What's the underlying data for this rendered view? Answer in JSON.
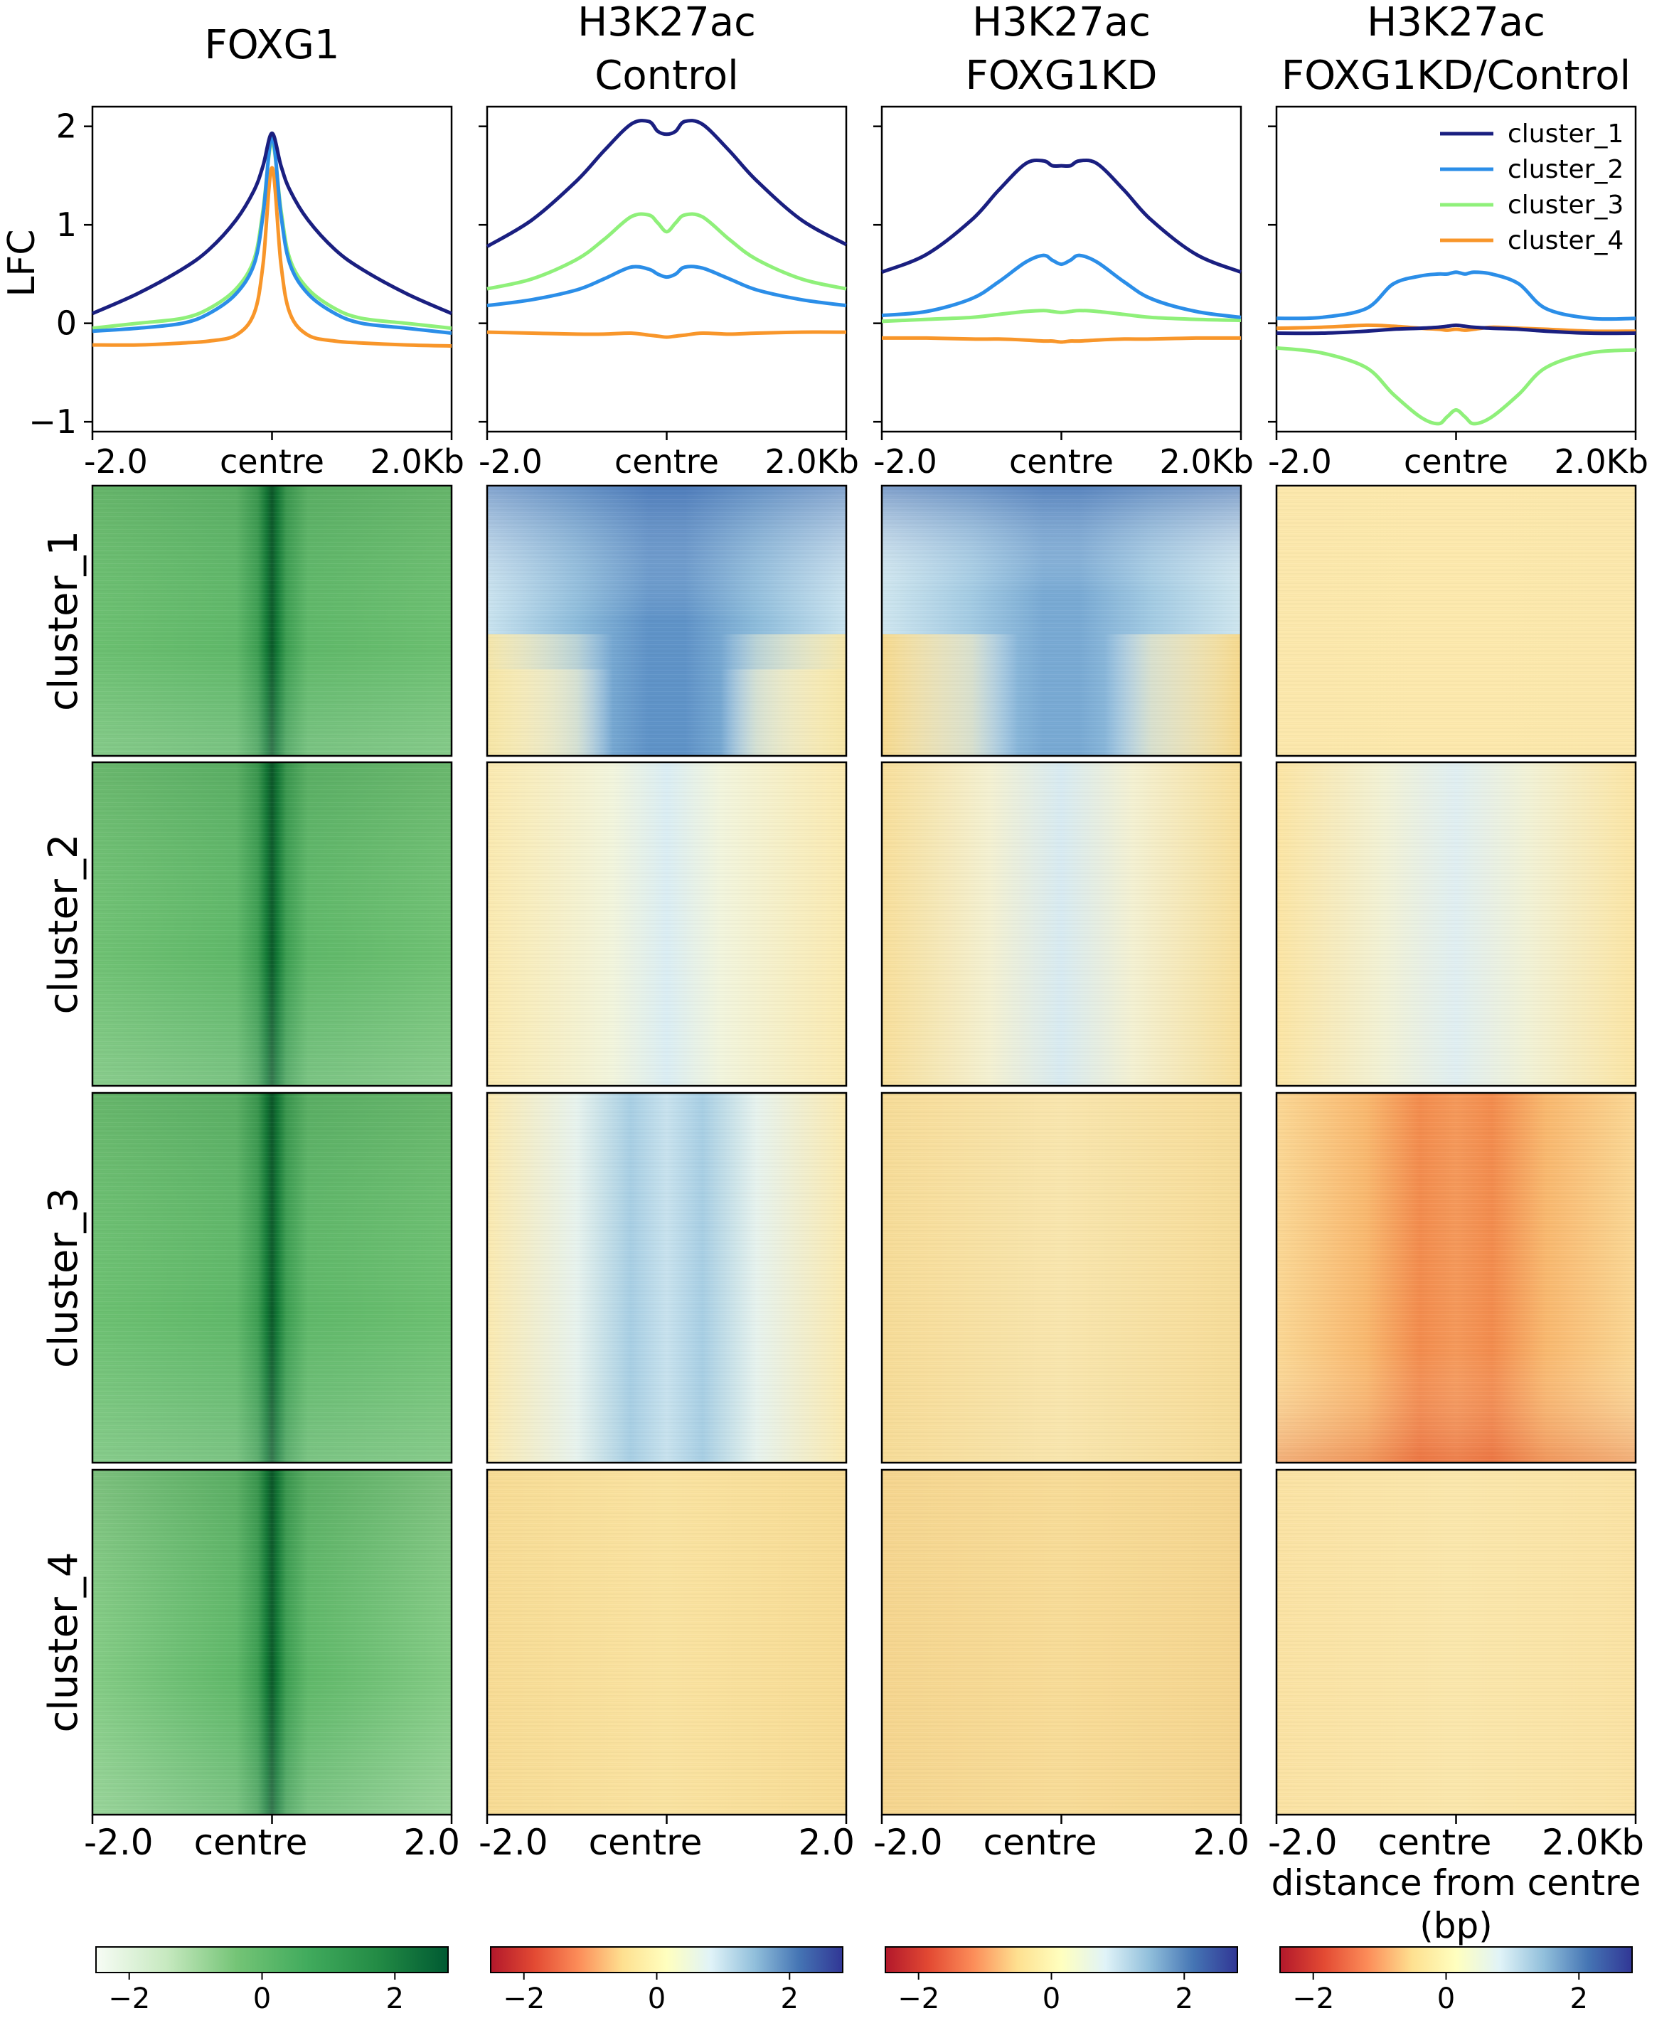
{
  "chart_data": {
    "type": "heatmap",
    "columns": [
      {
        "title_lines": [
          "FOXG1"
        ],
        "colormap": "Greens"
      },
      {
        "title_lines": [
          "H3K27ac",
          "Control"
        ],
        "colormap": "RdYlBu"
      },
      {
        "title_lines": [
          "H3K27ac",
          "FOXG1KD"
        ],
        "colormap": "RdYlBu"
      },
      {
        "title_lines": [
          "H3K27ac",
          "FOXG1KD/Control"
        ],
        "colormap": "RdYlBu"
      }
    ],
    "profile": {
      "ylabel": "LFC",
      "ylim": [
        -1.1,
        2.2
      ],
      "yticks": [
        -1,
        0,
        1,
        2
      ],
      "ytick_labels": [
        "−1",
        "0",
        "1",
        "2"
      ],
      "xtick_labels": [
        "-2.0",
        "centre",
        "2.0Kb"
      ],
      "x_range": [
        -2000,
        2000
      ],
      "legend_position": "top-right",
      "series": [
        {
          "name": "cluster_1",
          "color": "#1a1f80"
        },
        {
          "name": "cluster_2",
          "color": "#2b8ee8"
        },
        {
          "name": "cluster_3",
          "color": "#8ff07a"
        },
        {
          "name": "cluster_4",
          "color": "#f8962a"
        }
      ],
      "x": [
        -2000,
        -1500,
        -1000,
        -700,
        -400,
        -200,
        -100,
        0,
        100,
        200,
        400,
        700,
        1000,
        1500,
        2000
      ],
      "panels": [
        [
          [
            0.1,
            0.3,
            0.55,
            0.75,
            1.05,
            1.35,
            1.6,
            1.93,
            1.6,
            1.35,
            1.05,
            0.75,
            0.55,
            0.3,
            0.1
          ],
          [
            -0.08,
            -0.05,
            0.0,
            0.1,
            0.3,
            0.6,
            1.1,
            1.9,
            1.1,
            0.6,
            0.3,
            0.1,
            0.0,
            -0.05,
            -0.1
          ],
          [
            -0.05,
            0.0,
            0.05,
            0.15,
            0.35,
            0.65,
            1.15,
            1.85,
            1.15,
            0.65,
            0.35,
            0.15,
            0.05,
            0.0,
            -0.05
          ],
          [
            -0.22,
            -0.22,
            -0.2,
            -0.18,
            -0.12,
            0.1,
            0.6,
            1.58,
            0.6,
            0.1,
            -0.12,
            -0.18,
            -0.2,
            -0.22,
            -0.23
          ]
        ],
        [
          [
            0.78,
            1.05,
            1.45,
            1.75,
            2.02,
            2.05,
            1.95,
            1.92,
            1.95,
            2.05,
            2.02,
            1.75,
            1.45,
            1.05,
            0.8
          ],
          [
            0.18,
            0.24,
            0.34,
            0.45,
            0.57,
            0.55,
            0.5,
            0.47,
            0.5,
            0.57,
            0.56,
            0.45,
            0.34,
            0.24,
            0.18
          ],
          [
            0.35,
            0.45,
            0.65,
            0.85,
            1.08,
            1.1,
            1.02,
            0.93,
            1.02,
            1.1,
            1.08,
            0.85,
            0.65,
            0.45,
            0.35
          ],
          [
            -0.09,
            -0.1,
            -0.11,
            -0.11,
            -0.1,
            -0.12,
            -0.13,
            -0.14,
            -0.13,
            -0.12,
            -0.1,
            -0.11,
            -0.1,
            -0.09,
            -0.09
          ]
        ],
        [
          [
            0.52,
            0.7,
            1.05,
            1.35,
            1.62,
            1.65,
            1.6,
            1.6,
            1.6,
            1.65,
            1.62,
            1.35,
            1.05,
            0.7,
            0.52
          ],
          [
            0.08,
            0.12,
            0.25,
            0.42,
            0.62,
            0.69,
            0.64,
            0.6,
            0.64,
            0.69,
            0.62,
            0.42,
            0.25,
            0.12,
            0.06
          ],
          [
            0.02,
            0.04,
            0.06,
            0.09,
            0.12,
            0.13,
            0.12,
            0.11,
            0.12,
            0.13,
            0.12,
            0.09,
            0.06,
            0.04,
            0.03
          ],
          [
            -0.15,
            -0.15,
            -0.16,
            -0.16,
            -0.17,
            -0.18,
            -0.18,
            -0.19,
            -0.18,
            -0.18,
            -0.17,
            -0.16,
            -0.16,
            -0.15,
            -0.15
          ]
        ],
        [
          [
            -0.1,
            -0.1,
            -0.08,
            -0.06,
            -0.05,
            -0.04,
            -0.03,
            -0.02,
            -0.03,
            -0.04,
            -0.05,
            -0.06,
            -0.08,
            -0.1,
            -0.1
          ],
          [
            0.05,
            0.06,
            0.15,
            0.4,
            0.48,
            0.5,
            0.5,
            0.52,
            0.5,
            0.52,
            0.5,
            0.4,
            0.15,
            0.05,
            0.05
          ],
          [
            -0.25,
            -0.3,
            -0.45,
            -0.72,
            -0.95,
            -1.02,
            -0.95,
            -0.88,
            -0.95,
            -1.02,
            -0.95,
            -0.72,
            -0.45,
            -0.3,
            -0.27
          ],
          [
            -0.05,
            -0.04,
            -0.02,
            -0.03,
            -0.05,
            -0.06,
            -0.07,
            -0.06,
            -0.07,
            -0.06,
            -0.04,
            -0.05,
            -0.06,
            -0.08,
            -0.08
          ]
        ]
      ]
    },
    "heatmap": {
      "row_labels": [
        "cluster_1",
        "cluster_2",
        "cluster_3",
        "cluster_4"
      ],
      "xtick_labels": [
        [
          "-2.0",
          "centre",
          "2.0"
        ],
        [
          "-2.0",
          "centre",
          "2.0"
        ],
        [
          "-2.0",
          "centre",
          "2.0"
        ],
        [
          "-2.0",
          "centre",
          "2.0Kb"
        ]
      ],
      "xlabel_last": [
        "distance from centre",
        "(bp)"
      ]
    },
    "colorbars": [
      {
        "colormap": "Greens",
        "range": [
          -2.5,
          2.8
        ],
        "ticks": [
          -2,
          0,
          2
        ],
        "tick_labels": [
          "−2",
          "0",
          "2"
        ]
      },
      {
        "colormap": "RdYlBu",
        "range": [
          -2.5,
          2.8
        ],
        "ticks": [
          -2,
          0,
          2
        ],
        "tick_labels": [
          "−2",
          "0",
          "2"
        ]
      },
      {
        "colormap": "RdYlBu",
        "range": [
          -2.5,
          2.8
        ],
        "ticks": [
          -2,
          0,
          2
        ],
        "tick_labels": [
          "−2",
          "0",
          "2"
        ]
      },
      {
        "colormap": "RdYlBu",
        "range": [
          -2.5,
          2.8
        ],
        "ticks": [
          -2,
          0,
          2
        ],
        "tick_labels": [
          "−2",
          "0",
          "2"
        ]
      }
    ],
    "colormaps": {
      "Greens": [
        "#f7fcf5",
        "#c7e9c0",
        "#74c476",
        "#41ab5d",
        "#238b45",
        "#005a32"
      ],
      "RdYlBu": [
        "#b2182b",
        "#e34a33",
        "#fc8d59",
        "#fee090",
        "#ffffbf",
        "#e0f3f8",
        "#91bfdb",
        "#4575b4",
        "#313695"
      ]
    }
  }
}
